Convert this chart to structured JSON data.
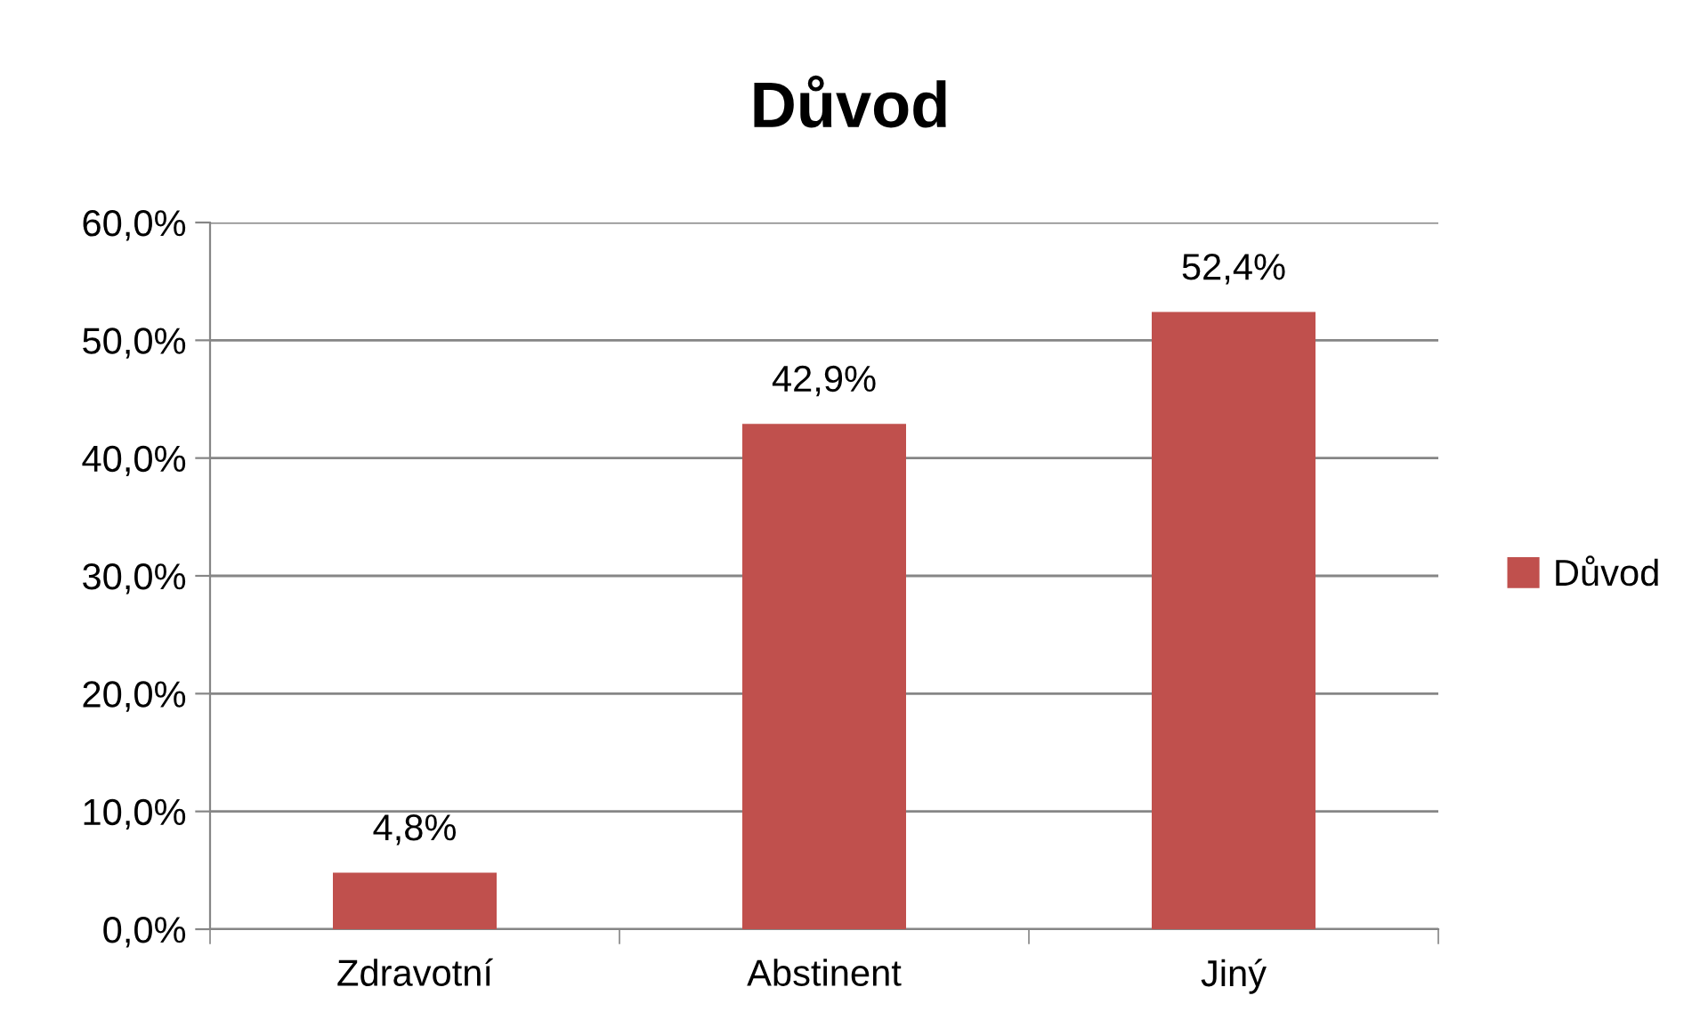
{
  "chart_data": {
    "type": "bar",
    "title": "Důvod",
    "categories": [
      "Zdravotní",
      "Abstinent",
      "Jiný"
    ],
    "series": [
      {
        "name": "Důvod",
        "color": "#c0504d",
        "values": [
          4.8,
          42.9,
          52.4
        ],
        "value_labels": [
          "4,8%",
          "42,9%",
          "52,4%"
        ]
      }
    ],
    "ylim": [
      0,
      60
    ],
    "yticks": [
      {
        "value": 0,
        "label": "0,0%"
      },
      {
        "value": 10,
        "label": "10,0%"
      },
      {
        "value": 20,
        "label": "20,0%"
      },
      {
        "value": 30,
        "label": "30,0%"
      },
      {
        "value": 40,
        "label": "40,0%"
      },
      {
        "value": 50,
        "label": "50,0%"
      },
      {
        "value": 60,
        "label": "60,0%"
      }
    ],
    "grid": "y",
    "legend": "right"
  }
}
